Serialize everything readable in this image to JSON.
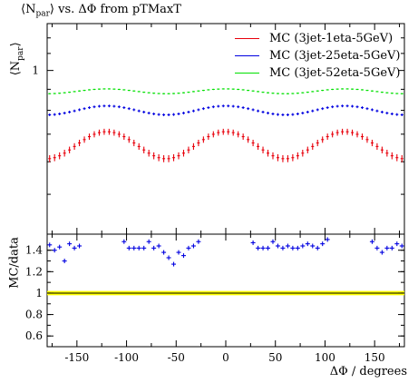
{
  "title_prefix": "⟨N",
  "title_sub": "par",
  "title_suffix": "⟩ vs. ΔΦ from pTMaxT",
  "ylabel_main_prefix": "⟨N",
  "ylabel_main_sub": "par",
  "ylabel_main_suffix": "⟩",
  "ylabel_ratio": "MC/data",
  "xlabel": "ΔΦ / degrees",
  "colors": {
    "red": "#e8000b",
    "blue": "#0000e0",
    "green": "#00e000",
    "band": "#ffff00",
    "frame": "#000000"
  },
  "legend": [
    {
      "label": "MC (3jet-1eta-5GeV)",
      "color": "#e8000b"
    },
    {
      "label": "MC (3jet-25eta-5GeV)",
      "color": "#0000e0"
    },
    {
      "label": "MC (3jet-52eta-5GeV)",
      "color": "#00e000"
    }
  ],
  "chart_data": [
    {
      "type": "scatter",
      "title": "⟨Npar⟩ vs. ΔΦ from pTMaxT",
      "xlabel": "",
      "ylabel": "⟨Npar⟩",
      "xlim": [
        -180,
        180
      ],
      "ylim": [
        0.4,
        1.3
      ],
      "yscale": "log",
      "y_ticks": [
        "1"
      ],
      "x_edges": [
        -180,
        180
      ],
      "n_bins": 72,
      "series": [
        {
          "name": "MC (3jet-1eta-5GeV)",
          "profile": {
            "mean": 0.66,
            "amp": 0.05,
            "period_deg": 120,
            "peak_deg": 0
          },
          "error": 0.012
        },
        {
          "name": "MC (3jet-25eta-5GeV)",
          "profile": {
            "mean": 0.8,
            "amp": 0.02,
            "period_deg": 120,
            "peak_deg": 0
          },
          "error": 0.006
        },
        {
          "name": "MC (3jet-52eta-5GeV)",
          "profile": {
            "mean": 0.89,
            "amp": 0.012,
            "period_deg": 120,
            "peak_deg": 0
          },
          "error": 0.003
        }
      ],
      "legend_position": "top-right"
    },
    {
      "type": "scatter",
      "xlabel": "ΔΦ / degrees",
      "ylabel": "MC/data",
      "xlim": [
        -180,
        180
      ],
      "ylim": [
        0.5,
        1.55
      ],
      "x_ticks": [
        "-150",
        "-100",
        "-50",
        "0",
        "50",
        "100",
        "150"
      ],
      "y_ticks": [
        "0.6",
        "0.8",
        "1",
        "1.2",
        "1.4"
      ],
      "reference_line": 1.0,
      "data_band_halfwidth": 0.02,
      "series": [
        {
          "name": "MC (3jet-25eta-5GeV)",
          "points": [
            [
              -177.5,
              1.45
            ],
            [
              -172.5,
              1.4
            ],
            [
              -167.5,
              1.43
            ],
            [
              -162.5,
              1.3
            ],
            [
              -157.5,
              1.46
            ],
            [
              -152.5,
              1.42
            ],
            [
              -147.5,
              1.44
            ],
            [
              -102.5,
              1.48
            ],
            [
              -97.5,
              1.42
            ],
            [
              -92.5,
              1.42
            ],
            [
              -87.5,
              1.42
            ],
            [
              -82.5,
              1.42
            ],
            [
              -77.5,
              1.48
            ],
            [
              -72.5,
              1.42
            ],
            [
              -67.5,
              1.44
            ],
            [
              -62.5,
              1.38
            ],
            [
              -57.5,
              1.33
            ],
            [
              -52.5,
              1.27
            ],
            [
              -47.5,
              1.38
            ],
            [
              -42.5,
              1.35
            ],
            [
              -37.5,
              1.42
            ],
            [
              -32.5,
              1.44
            ],
            [
              -27.5,
              1.48
            ],
            [
              27.5,
              1.47
            ],
            [
              32.5,
              1.42
            ],
            [
              37.5,
              1.42
            ],
            [
              42.5,
              1.42
            ],
            [
              47.5,
              1.48
            ],
            [
              52.5,
              1.44
            ],
            [
              57.5,
              1.42
            ],
            [
              62.5,
              1.44
            ],
            [
              67.5,
              1.42
            ],
            [
              72.5,
              1.42
            ],
            [
              77.5,
              1.44
            ],
            [
              82.5,
              1.46
            ],
            [
              87.5,
              1.44
            ],
            [
              92.5,
              1.42
            ],
            [
              97.5,
              1.46
            ],
            [
              102.5,
              1.5
            ],
            [
              147.5,
              1.48
            ],
            [
              152.5,
              1.42
            ],
            [
              157.5,
              1.38
            ],
            [
              162.5,
              1.42
            ],
            [
              167.5,
              1.42
            ],
            [
              172.5,
              1.46
            ],
            [
              177.5,
              1.44
            ]
          ]
        }
      ]
    }
  ]
}
